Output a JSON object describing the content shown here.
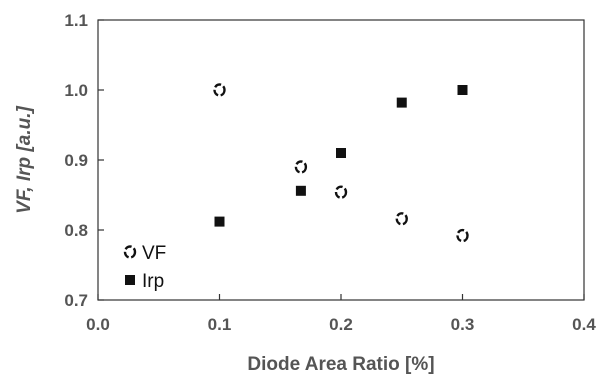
{
  "chart_data": {
    "type": "scatter",
    "xlabel": "Diode Area Ratio [%]",
    "ylabel": "VF, Irp [a.u.]",
    "xlim": [
      0.0,
      0.4
    ],
    "ylim": [
      0.7,
      1.1
    ],
    "x_ticks": [
      "0.0",
      "0.1",
      "0.2",
      "0.3",
      "0.4"
    ],
    "y_ticks": [
      "0.7",
      "0.8",
      "0.9",
      "1.0",
      "1.1"
    ],
    "grid": false,
    "legend_position": "bottom-left",
    "series": [
      {
        "name": "VF",
        "marker": "open-circle",
        "color": "#111111",
        "x": [
          0.1,
          0.167,
          0.2,
          0.25,
          0.3
        ],
        "y": [
          1.0,
          0.89,
          0.854,
          0.816,
          0.792
        ]
      },
      {
        "name": "Irp",
        "marker": "filled-square",
        "color": "#111111",
        "x": [
          0.1,
          0.167,
          0.2,
          0.25,
          0.3
        ],
        "y": [
          0.812,
          0.856,
          0.91,
          0.982,
          1.0
        ]
      }
    ]
  }
}
